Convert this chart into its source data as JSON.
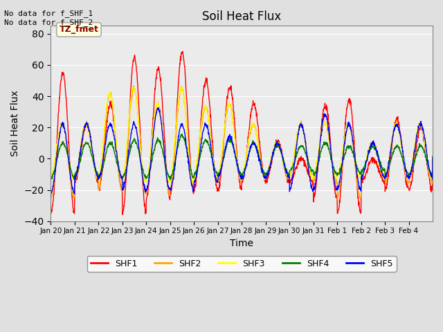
{
  "title": "Soil Heat Flux",
  "ylabel": "Soil Heat Flux",
  "xlabel": "Time",
  "top_left_text": "No data for f_SHF_1\nNo data for f_SHF_2",
  "legend_box_text": "TZ_fmet",
  "series": [
    "SHF1",
    "SHF2",
    "SHF3",
    "SHF4",
    "SHF5"
  ],
  "colors": [
    "red",
    "orange",
    "yellow",
    "green",
    "blue"
  ],
  "ylim": [
    -40,
    85
  ],
  "yticks": [
    -40,
    -20,
    0,
    20,
    40,
    60,
    80
  ],
  "background_color": "#e0e0e0",
  "plot_bg_color": "#ebebeb",
  "x_labels": [
    "Jan 20",
    "Jan 21",
    "Jan 22",
    "Jan 23",
    "Jan 24",
    "Jan 25",
    "Jan 26",
    "Jan 27",
    "Jan 28",
    "Jan 29",
    "Jan 30",
    "Jan 31",
    "Feb 1",
    "Feb 2",
    "Feb 3",
    "Feb 4"
  ],
  "shf1_peaks": [
    55,
    22,
    35,
    65,
    58,
    68,
    50,
    46,
    35,
    11,
    0,
    34,
    38,
    0,
    25,
    20
  ],
  "shf1_troughs": [
    -35,
    -15,
    -20,
    -35,
    -25,
    -22,
    -20,
    -20,
    -15,
    -15,
    -15,
    -25,
    -35,
    -15,
    -20,
    -20
  ],
  "shf2_peaks": [
    22,
    22,
    42,
    45,
    35,
    45,
    33,
    35,
    22,
    10,
    22,
    23,
    22,
    10,
    22,
    22
  ],
  "shf2_troughs": [
    -25,
    -12,
    -20,
    -22,
    -22,
    -20,
    -15,
    -15,
    -12,
    -12,
    -12,
    -15,
    -25,
    -12,
    -15,
    -15
  ],
  "shf3_peaks": [
    22,
    22,
    42,
    45,
    35,
    45,
    33,
    35,
    22,
    10,
    22,
    23,
    22,
    10,
    22,
    22
  ],
  "shf3_troughs": [
    -12,
    -12,
    -12,
    -15,
    -15,
    -15,
    -12,
    -12,
    -12,
    -12,
    -12,
    -12,
    -12,
    -12,
    -12,
    -12
  ],
  "shf4_peaks": [
    10,
    10,
    10,
    12,
    12,
    15,
    12,
    12,
    10,
    8,
    8,
    10,
    8,
    8,
    8,
    8
  ],
  "shf4_troughs": [
    -12,
    -10,
    -12,
    -12,
    -12,
    -12,
    -10,
    -10,
    -10,
    -10,
    -8,
    -10,
    -10,
    -8,
    -10,
    -10
  ],
  "shf5_peaks": [
    22,
    22,
    22,
    22,
    32,
    22,
    22,
    14,
    10,
    10,
    22,
    28,
    22,
    10,
    22,
    22
  ],
  "shf5_troughs": [
    -22,
    -12,
    -12,
    -20,
    -20,
    -20,
    -15,
    -12,
    -12,
    -12,
    -20,
    -20,
    -20,
    -12,
    -12,
    -12
  ]
}
